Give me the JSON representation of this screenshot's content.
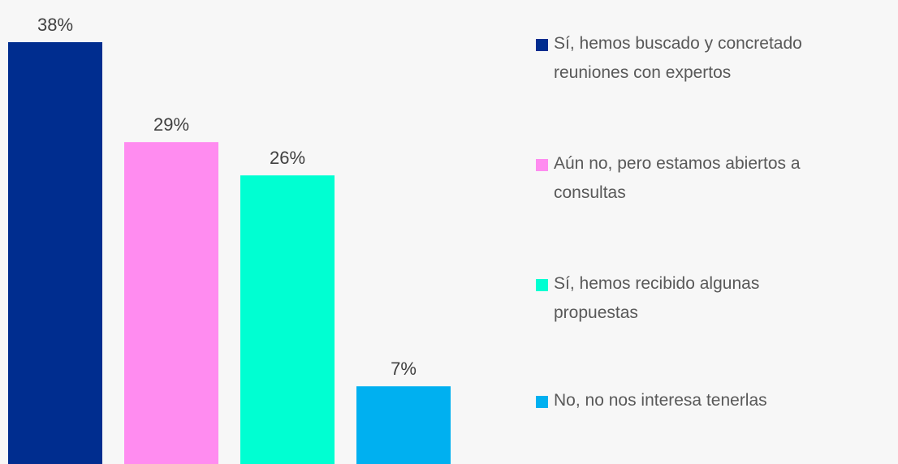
{
  "chart_data": {
    "type": "bar",
    "series": [
      {
        "name": "Sí, hemos buscado y concretado reuniones con expertos",
        "color": "#002d8f",
        "values": [
          38
        ],
        "value_labels": [
          "38%"
        ]
      },
      {
        "name": "Aún no, pero estamos abiertos a consultas",
        "color": "#ff8cf0",
        "values": [
          29
        ],
        "value_labels": [
          "29%"
        ]
      },
      {
        "name": "Sí, hemos recibido algunas propuestas",
        "color": "#00ffd2",
        "values": [
          26
        ],
        "value_labels": [
          "26%"
        ]
      },
      {
        "name": "No, no nos interesa tenerlas",
        "color": "#00b0f0",
        "values": [
          7
        ],
        "value_labels": [
          "7%"
        ]
      }
    ],
    "ylim": [
      0,
      38
    ],
    "legend": "right"
  }
}
